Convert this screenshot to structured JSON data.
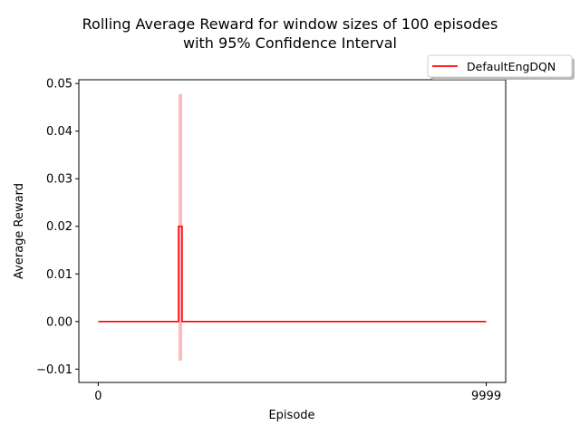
{
  "chart_data": {
    "type": "line",
    "title_line1": "Rolling Average Reward for window sizes of 100 episodes",
    "title_line2": "with 95% Confidence Interval",
    "xlabel": "Episode",
    "ylabel": "Average Reward",
    "xlim": [
      -500,
      10500
    ],
    "ylim": [
      -0.0128,
      0.0508
    ],
    "x_ticks": [
      {
        "value": 0,
        "label": "0"
      },
      {
        "value": 9999,
        "label": "9999"
      }
    ],
    "y_ticks": [
      {
        "value": -0.01,
        "label": "−0.01"
      },
      {
        "value": 0.0,
        "label": "0.00"
      },
      {
        "value": 0.01,
        "label": "0.01"
      },
      {
        "value": 0.02,
        "label": "0.02"
      },
      {
        "value": 0.03,
        "label": "0.03"
      },
      {
        "value": 0.04,
        "label": "0.04"
      },
      {
        "value": 0.05,
        "label": "0.05"
      }
    ],
    "grid": false,
    "legend_position": "top-right, outside plot",
    "series": [
      {
        "name": "DefaultEngDQN",
        "color": "#ff0000",
        "band_color": "#ff0000",
        "x": [
          0,
          2070,
          2070,
          2160,
          2160,
          9999
        ],
        "y": [
          0,
          0,
          0.02,
          0.02,
          0,
          0
        ],
        "band": {
          "x": [
            2070,
            2070,
            2160,
            2160
          ],
          "lower": [
            -0.0082,
            -0.0082,
            -0.0082,
            -0.0082
          ],
          "upper": [
            0.0478,
            0.0478,
            0.0478,
            0.0478
          ]
        }
      }
    ]
  }
}
